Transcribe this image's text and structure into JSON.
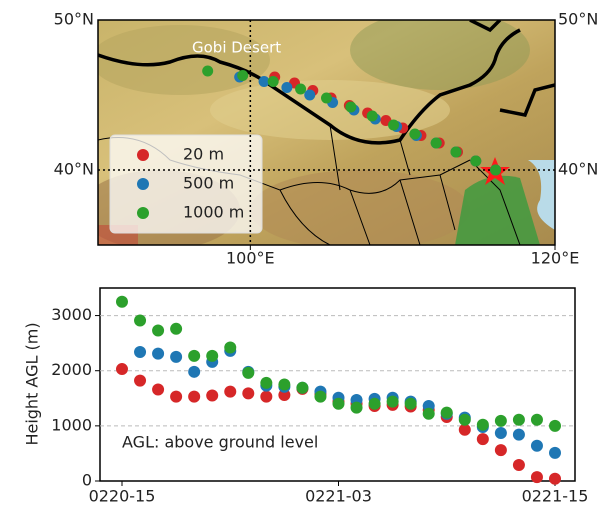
{
  "chart_data": [
    {
      "type": "map",
      "annotation": "Gobi Desert",
      "xlim": [
        90,
        120
      ],
      "xticks": [
        {
          "value": 100,
          "label": "100°E"
        },
        {
          "value": 120,
          "label": "120°E"
        }
      ],
      "ylim": [
        35,
        50
      ],
      "yticks": [
        {
          "value": 40,
          "label": "40°N"
        },
        {
          "value": 50,
          "label": "50°N"
        }
      ],
      "grid": true,
      "legend": "lower left",
      "series": [
        {
          "name": "20 m",
          "color": "#d62728",
          "x": [
            101.6,
            102.9,
            104.1,
            105.3,
            106.5,
            107.7,
            108.9,
            110.0,
            111.2,
            112.4,
            113.6,
            114.8,
            116.1
          ],
          "y": [
            46.2,
            45.8,
            45.3,
            44.8,
            44.3,
            43.8,
            43.3,
            42.8,
            42.3,
            41.8,
            41.2,
            40.6,
            40.0
          ]
        },
        {
          "name": "500 m",
          "color": "#1f77b4",
          "x": [
            99.3,
            100.9,
            102.4,
            103.9,
            105.4,
            106.8,
            108.2,
            109.6,
            110.9,
            112.2,
            113.5,
            114.8,
            116.1
          ],
          "y": [
            46.2,
            45.9,
            45.5,
            45.0,
            44.5,
            44.0,
            43.4,
            42.9,
            42.3,
            41.8,
            41.2,
            40.6,
            40.0
          ]
        },
        {
          "name": "1000 m",
          "color": "#2ca02c",
          "x": [
            97.2,
            99.5,
            101.5,
            103.3,
            105.0,
            106.6,
            108.0,
            109.4,
            110.8,
            112.2,
            113.5,
            114.8,
            116.1
          ],
          "y": [
            46.6,
            46.3,
            45.9,
            45.4,
            44.8,
            44.2,
            43.6,
            43.0,
            42.4,
            41.8,
            41.2,
            40.6,
            40.0
          ]
        }
      ]
    },
    {
      "type": "scatter",
      "ylabel": "Height AGL (m)",
      "annotation": "AGL: above ground level",
      "categories": [
        "0220-15",
        null,
        null,
        null,
        null,
        null,
        null,
        null,
        null,
        null,
        null,
        null,
        "0221-03",
        null,
        null,
        null,
        null,
        null,
        null,
        null,
        null,
        null,
        null,
        null,
        "0221-15"
      ],
      "ylim": [
        0,
        3500
      ],
      "yticks": [
        0,
        1000,
        2000,
        3000
      ],
      "grid": true,
      "series": [
        {
          "color": "#d62728",
          "values": [
            2030,
            1820,
            1660,
            1530,
            1530,
            1550,
            1620,
            1590,
            1530,
            1560,
            1670,
            1580,
            1440,
            1400,
            1360,
            1380,
            1350,
            1290,
            1160,
            930,
            760,
            560,
            290,
            70,
            40
          ]
        },
        {
          "color": "#1f77b4",
          "values": [
            null,
            2340,
            2310,
            2250,
            1980,
            2160,
            2360,
            1980,
            1730,
            1710,
            1690,
            1620,
            1510,
            1470,
            1490,
            1510,
            1440,
            1360,
            1220,
            1150,
            980,
            870,
            840,
            640,
            510
          ]
        },
        {
          "color": "#2ca02c",
          "values": [
            3250,
            2910,
            2730,
            2760,
            2270,
            2270,
            2420,
            1960,
            1780,
            1750,
            1690,
            1530,
            1400,
            1330,
            1400,
            1440,
            1400,
            1220,
            1240,
            1110,
            1020,
            1090,
            1110,
            1110,
            1000
          ]
        }
      ]
    }
  ]
}
